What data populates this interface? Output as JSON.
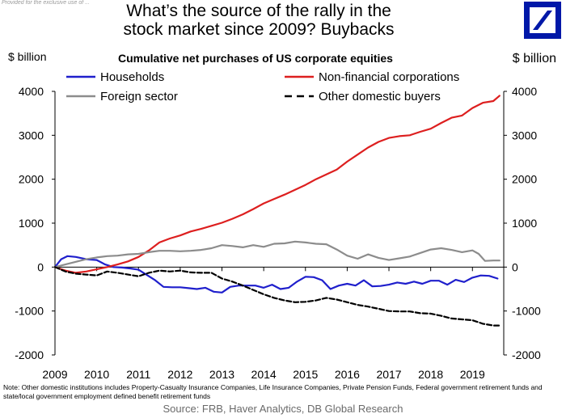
{
  "header": {
    "watermark": "Provided for the exclusive use of ...",
    "title_line1": "What’s the source of the rally in the",
    "title_line2": "stock market since 2009? Buybacks"
  },
  "footer": {
    "note": "Note: Other domestic institutions includes Property-Casualty Insurance Companies, Life Insurance Companies, Private Pension Funds, Federal government retirement funds and state/local government employment defined benefit retirement funds",
    "source": "Source: FRB, Haver Analytics, DB Global Research"
  },
  "colors": {
    "households": "#1f1fcc",
    "non_financial": "#dd1f1f",
    "foreign": "#8c8c8c",
    "other": "#000000",
    "logo": "#0018a8"
  },
  "chart_data": {
    "type": "line",
    "title": "Cumulative net purchases of US corporate equities",
    "ylabel_left": "$ billion",
    "ylabel_right": "$ billion",
    "ylim": [
      -2000,
      4000
    ],
    "yticks": [
      -2000,
      -1000,
      0,
      1000,
      2000,
      3000,
      4000
    ],
    "xlim": [
      2009,
      2019.75
    ],
    "xticks": [
      2009,
      2010,
      2011,
      2012,
      2013,
      2014,
      2015,
      2016,
      2017,
      2018,
      2019
    ],
    "grid": false,
    "legend_position": "top",
    "series": [
      {
        "name": "Households",
        "color": "#1f1fcc",
        "dash": "solid",
        "points": [
          [
            2009.0,
            0
          ],
          [
            2009.15,
            180
          ],
          [
            2009.3,
            250
          ],
          [
            2009.5,
            230
          ],
          [
            2009.75,
            180
          ],
          [
            2010.0,
            160
          ],
          [
            2010.2,
            60
          ],
          [
            2010.4,
            0
          ],
          [
            2010.6,
            -10
          ],
          [
            2010.8,
            -30
          ],
          [
            2011.0,
            -60
          ],
          [
            2011.2,
            -180
          ],
          [
            2011.4,
            -300
          ],
          [
            2011.6,
            -450
          ],
          [
            2011.8,
            -460
          ],
          [
            2012.0,
            -460
          ],
          [
            2012.2,
            -480
          ],
          [
            2012.4,
            -500
          ],
          [
            2012.6,
            -470
          ],
          [
            2012.8,
            -560
          ],
          [
            2013.0,
            -580
          ],
          [
            2013.2,
            -450
          ],
          [
            2013.4,
            -420
          ],
          [
            2013.6,
            -420
          ],
          [
            2013.8,
            -420
          ],
          [
            2014.0,
            -470
          ],
          [
            2014.2,
            -400
          ],
          [
            2014.4,
            -500
          ],
          [
            2014.6,
            -470
          ],
          [
            2014.8,
            -330
          ],
          [
            2015.0,
            -220
          ],
          [
            2015.2,
            -230
          ],
          [
            2015.4,
            -300
          ],
          [
            2015.6,
            -500
          ],
          [
            2015.8,
            -420
          ],
          [
            2016.0,
            -380
          ],
          [
            2016.2,
            -420
          ],
          [
            2016.4,
            -300
          ],
          [
            2016.6,
            -440
          ],
          [
            2016.8,
            -430
          ],
          [
            2017.0,
            -400
          ],
          [
            2017.2,
            -350
          ],
          [
            2017.4,
            -380
          ],
          [
            2017.6,
            -330
          ],
          [
            2017.8,
            -380
          ],
          [
            2018.0,
            -310
          ],
          [
            2018.2,
            -310
          ],
          [
            2018.4,
            -400
          ],
          [
            2018.6,
            -290
          ],
          [
            2018.8,
            -340
          ],
          [
            2019.0,
            -240
          ],
          [
            2019.2,
            -190
          ],
          [
            2019.4,
            -200
          ],
          [
            2019.6,
            -260
          ]
        ]
      },
      {
        "name": "Non-financial corporations",
        "color": "#dd1f1f",
        "dash": "solid",
        "points": [
          [
            2009.0,
            0
          ],
          [
            2009.25,
            -80
          ],
          [
            2009.5,
            -130
          ],
          [
            2009.75,
            -100
          ],
          [
            2010.0,
            -50
          ],
          [
            2010.25,
            0
          ],
          [
            2010.5,
            60
          ],
          [
            2010.75,
            130
          ],
          [
            2011.0,
            230
          ],
          [
            2011.25,
            380
          ],
          [
            2011.5,
            560
          ],
          [
            2011.75,
            650
          ],
          [
            2012.0,
            720
          ],
          [
            2012.25,
            810
          ],
          [
            2012.5,
            870
          ],
          [
            2012.75,
            940
          ],
          [
            2013.0,
            1010
          ],
          [
            2013.25,
            1100
          ],
          [
            2013.5,
            1200
          ],
          [
            2013.75,
            1320
          ],
          [
            2014.0,
            1450
          ],
          [
            2014.25,
            1550
          ],
          [
            2014.5,
            1650
          ],
          [
            2014.75,
            1760
          ],
          [
            2015.0,
            1870
          ],
          [
            2015.25,
            2000
          ],
          [
            2015.5,
            2110
          ],
          [
            2015.75,
            2220
          ],
          [
            2016.0,
            2400
          ],
          [
            2016.25,
            2560
          ],
          [
            2016.5,
            2720
          ],
          [
            2016.75,
            2850
          ],
          [
            2017.0,
            2940
          ],
          [
            2017.25,
            2980
          ],
          [
            2017.5,
            3000
          ],
          [
            2017.75,
            3080
          ],
          [
            2018.0,
            3150
          ],
          [
            2018.25,
            3280
          ],
          [
            2018.5,
            3400
          ],
          [
            2018.75,
            3450
          ],
          [
            2019.0,
            3620
          ],
          [
            2019.25,
            3740
          ],
          [
            2019.5,
            3780
          ],
          [
            2019.65,
            3900
          ]
        ]
      },
      {
        "name": "Foreign sector",
        "color": "#8c8c8c",
        "dash": "solid",
        "points": [
          [
            2009.0,
            0
          ],
          [
            2009.25,
            60
          ],
          [
            2009.5,
            120
          ],
          [
            2009.75,
            180
          ],
          [
            2010.0,
            220
          ],
          [
            2010.25,
            250
          ],
          [
            2010.5,
            260
          ],
          [
            2010.75,
            290
          ],
          [
            2011.0,
            300
          ],
          [
            2011.25,
            340
          ],
          [
            2011.5,
            370
          ],
          [
            2011.75,
            370
          ],
          [
            2012.0,
            360
          ],
          [
            2012.25,
            370
          ],
          [
            2012.5,
            390
          ],
          [
            2012.75,
            430
          ],
          [
            2013.0,
            500
          ],
          [
            2013.25,
            480
          ],
          [
            2013.5,
            450
          ],
          [
            2013.75,
            500
          ],
          [
            2014.0,
            460
          ],
          [
            2014.25,
            530
          ],
          [
            2014.5,
            540
          ],
          [
            2014.75,
            580
          ],
          [
            2015.0,
            560
          ],
          [
            2015.25,
            530
          ],
          [
            2015.5,
            520
          ],
          [
            2015.75,
            400
          ],
          [
            2016.0,
            260
          ],
          [
            2016.25,
            190
          ],
          [
            2016.5,
            290
          ],
          [
            2016.75,
            210
          ],
          [
            2017.0,
            160
          ],
          [
            2017.25,
            200
          ],
          [
            2017.5,
            240
          ],
          [
            2017.75,
            320
          ],
          [
            2018.0,
            400
          ],
          [
            2018.25,
            430
          ],
          [
            2018.5,
            390
          ],
          [
            2018.75,
            340
          ],
          [
            2019.0,
            380
          ],
          [
            2019.15,
            300
          ],
          [
            2019.3,
            140
          ],
          [
            2019.5,
            150
          ],
          [
            2019.65,
            150
          ]
        ]
      },
      {
        "name": "Other domestic buyers",
        "color": "#000000",
        "dash": "dashed",
        "points": [
          [
            2009.0,
            0
          ],
          [
            2009.25,
            -100
          ],
          [
            2009.5,
            -150
          ],
          [
            2009.75,
            -170
          ],
          [
            2010.0,
            -190
          ],
          [
            2010.25,
            -100
          ],
          [
            2010.5,
            -130
          ],
          [
            2010.75,
            -170
          ],
          [
            2011.0,
            -210
          ],
          [
            2011.25,
            -130
          ],
          [
            2011.5,
            -80
          ],
          [
            2011.75,
            -100
          ],
          [
            2012.0,
            -80
          ],
          [
            2012.25,
            -120
          ],
          [
            2012.5,
            -130
          ],
          [
            2012.75,
            -130
          ],
          [
            2013.0,
            -260
          ],
          [
            2013.25,
            -330
          ],
          [
            2013.5,
            -420
          ],
          [
            2013.75,
            -520
          ],
          [
            2014.0,
            -620
          ],
          [
            2014.25,
            -700
          ],
          [
            2014.5,
            -760
          ],
          [
            2014.75,
            -800
          ],
          [
            2015.0,
            -790
          ],
          [
            2015.25,
            -760
          ],
          [
            2015.5,
            -700
          ],
          [
            2015.75,
            -740
          ],
          [
            2016.0,
            -800
          ],
          [
            2016.25,
            -860
          ],
          [
            2016.5,
            -900
          ],
          [
            2016.75,
            -950
          ],
          [
            2017.0,
            -1000
          ],
          [
            2017.25,
            -1010
          ],
          [
            2017.5,
            -1010
          ],
          [
            2017.75,
            -1050
          ],
          [
            2018.0,
            -1060
          ],
          [
            2018.25,
            -1110
          ],
          [
            2018.5,
            -1170
          ],
          [
            2018.75,
            -1190
          ],
          [
            2019.0,
            -1210
          ],
          [
            2019.25,
            -1290
          ],
          [
            2019.5,
            -1330
          ],
          [
            2019.65,
            -1330
          ]
        ]
      }
    ]
  }
}
